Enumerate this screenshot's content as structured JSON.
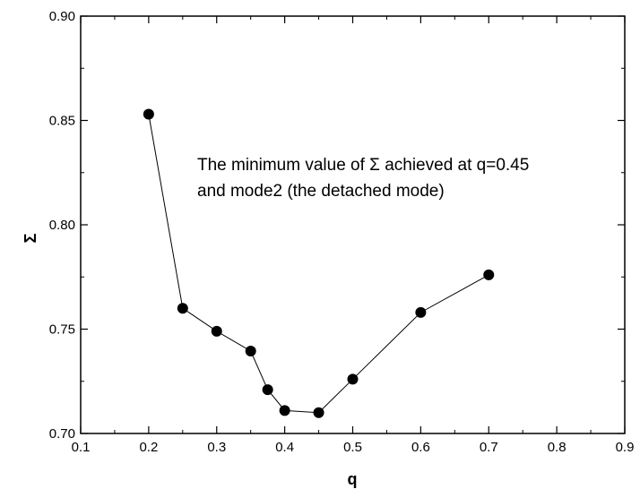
{
  "chart_data": {
    "type": "scatter",
    "title": "",
    "xlabel": "q",
    "ylabel": "Σ",
    "xlim": [
      0.1,
      0.9
    ],
    "ylim": [
      0.7,
      0.9
    ],
    "x_ticks": [
      "0.1",
      "0.2",
      "0.3",
      "0.4",
      "0.5",
      "0.6",
      "0.7",
      "0.8",
      "0.9"
    ],
    "y_ticks": [
      "0.70",
      "0.75",
      "0.80",
      "0.85",
      "0.90"
    ],
    "grid": false,
    "series": [
      {
        "marker": "filled-circle",
        "connected": true,
        "color": "#000000",
        "x": [
          0.2,
          0.25,
          0.3,
          0.35,
          0.375,
          0.4,
          0.45,
          0.5,
          0.6,
          0.7
        ],
        "y": [
          0.853,
          0.76,
          0.749,
          0.7395,
          0.721,
          0.711,
          0.71,
          0.726,
          0.758,
          0.776
        ]
      }
    ],
    "annotation": {
      "line1": "The minimum value of Σ achieved at q=0.45",
      "line2": "and mode2 (the detached mode)"
    }
  }
}
